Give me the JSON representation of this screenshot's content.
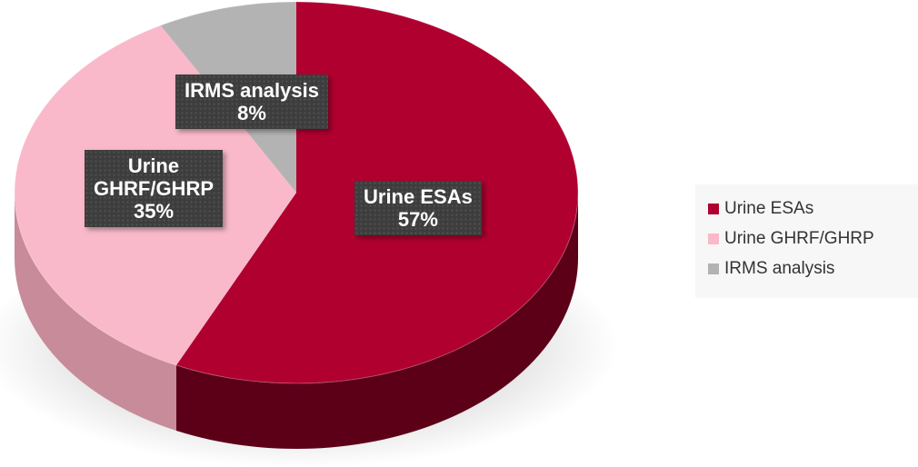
{
  "chart_data": {
    "type": "pie",
    "title": "",
    "slices": [
      {
        "label": "Urine ESAs",
        "value": 57,
        "percent_label": "57%",
        "display_label": [
          "Urine ESAs"
        ],
        "color": "#b0002f",
        "side_color": "#5c0018"
      },
      {
        "label": "Urine GHRF/GHRP",
        "value": 35,
        "percent_label": "35%",
        "display_label": [
          "Urine",
          "GHRF/GHRP"
        ],
        "color": "#f9b9ca",
        "side_color": "#c88b9a"
      },
      {
        "label": "IRMS analysis",
        "value": 8,
        "percent_label": "8%",
        "display_label": [
          "IRMS analysis"
        ],
        "color": "#b3b3b3",
        "side_color": "#8a8a8a"
      }
    ],
    "style": "3d",
    "legend": {
      "position": "right",
      "entries": [
        "Urine ESAs",
        "Urine GHRF/GHRP",
        "IRMS analysis"
      ]
    }
  }
}
